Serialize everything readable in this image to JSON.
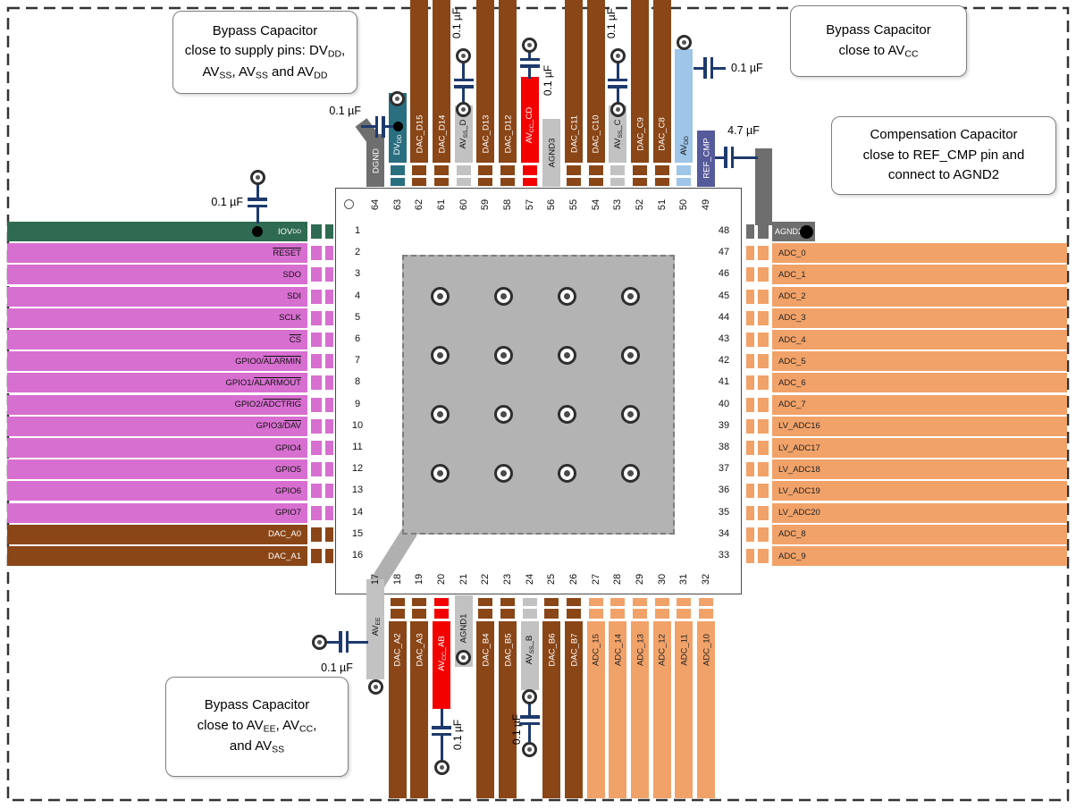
{
  "palette": {
    "magenta": "#d76fd0",
    "green": "#2f6b52",
    "brown": "#8a4617",
    "orange": "#f1a269",
    "teal": "#2a6f80",
    "red": "#f30000",
    "lightblue": "#9fc5e8",
    "indigo": "#555a9b",
    "grayDark": "#6e6e6e",
    "grayLight": "#c2c2c2",
    "navy": "#1e3a6d",
    "thermalPad": "#b3b3b3",
    "boardEdge": "#333333"
  },
  "capacitors": {
    "iovdd": "0.1 µF",
    "dgnd": "0.1 µF",
    "avss_d": "0.1 µF",
    "avcc_cd": "0.1 µF",
    "avss_c": "0.1 µF",
    "avdd": "0.1 µF",
    "ref_cmp": "4.7 µF",
    "avee": "0.1 µF",
    "avcc_ab": "0.1 µF",
    "avss_b": "0.1 µF"
  },
  "notes": [
    {
      "id": "note-bypass-supply",
      "lines": [
        [
          {
            "t": "Bypass Capacitor"
          }
        ],
        [
          {
            "t": "close to supply pins:  DV"
          },
          {
            "t": "DD",
            "sub": true
          },
          {
            "t": ","
          }
        ],
        [
          {
            "t": "AV"
          },
          {
            "t": "SS",
            "sub": true
          },
          {
            "t": ", AV"
          },
          {
            "t": "SS",
            "sub": true
          },
          {
            "t": " and AV"
          },
          {
            "t": "DD",
            "sub": true
          }
        ]
      ]
    },
    {
      "id": "note-bypass-avcc",
      "lines": [
        [
          {
            "t": "Bypass Capacitor"
          }
        ],
        [
          {
            "t": "close to AV"
          },
          {
            "t": "CC",
            "sub": true
          }
        ]
      ]
    },
    {
      "id": "note-compensation",
      "lines": [
        [
          {
            "t": "Compensation Capacitor"
          }
        ],
        [
          {
            "t": "close to REF_CMP pin and"
          }
        ],
        [
          {
            "t": "connect to AGND2"
          }
        ]
      ]
    },
    {
      "id": "note-bypass-avee",
      "lines": [
        [
          {
            "t": "Bypass Capacitor"
          }
        ],
        [
          {
            "t": "close to AV"
          },
          {
            "t": "EE",
            "sub": true
          },
          {
            "t": ", AV"
          },
          {
            "t": "CC",
            "sub": true
          },
          {
            "t": ","
          }
        ],
        [
          {
            "t": "and AV"
          },
          {
            "t": "SS",
            "sub": true
          }
        ]
      ]
    }
  ],
  "pins": {
    "left": [
      {
        "num": "1",
        "id": "iovdd",
        "c": "green",
        "t": "#ffffff",
        "label": [
          {
            "t": "IOV"
          },
          {
            "t": "DD",
            "sub": true
          }
        ]
      },
      {
        "num": "2",
        "id": "reset",
        "c": "magenta",
        "t": "#111111",
        "label": [
          {
            "t": "RESET",
            "over": true
          }
        ]
      },
      {
        "num": "3",
        "id": "sdo",
        "c": "magenta",
        "t": "#111111",
        "label": [
          {
            "t": "SDO"
          }
        ]
      },
      {
        "num": "4",
        "id": "sdi",
        "c": "magenta",
        "t": "#111111",
        "label": [
          {
            "t": "SDI"
          }
        ]
      },
      {
        "num": "5",
        "id": "sclk",
        "c": "magenta",
        "t": "#111111",
        "label": [
          {
            "t": "SCLK"
          }
        ]
      },
      {
        "num": "6",
        "id": "cs",
        "c": "magenta",
        "t": "#111111",
        "label": [
          {
            "t": "CS",
            "over": true
          }
        ]
      },
      {
        "num": "7",
        "id": "gpio0",
        "c": "magenta",
        "t": "#111111",
        "label": [
          {
            "t": "GPIO0/"
          },
          {
            "t": "ALARMIN",
            "over": true
          }
        ]
      },
      {
        "num": "8",
        "id": "gpio1",
        "c": "magenta",
        "t": "#111111",
        "label": [
          {
            "t": "GPIO1/"
          },
          {
            "t": "ALARMOUT",
            "over": true
          }
        ]
      },
      {
        "num": "9",
        "id": "gpio2",
        "c": "magenta",
        "t": "#111111",
        "label": [
          {
            "t": "GPIO2/"
          },
          {
            "t": "ADCTRIG",
            "over": true
          }
        ]
      },
      {
        "num": "10",
        "id": "gpio3",
        "c": "magenta",
        "t": "#111111",
        "label": [
          {
            "t": "GPIO3/"
          },
          {
            "t": "DAV",
            "over": true
          }
        ]
      },
      {
        "num": "11",
        "id": "gpio4",
        "c": "magenta",
        "t": "#111111",
        "label": [
          {
            "t": "GPIO4"
          }
        ]
      },
      {
        "num": "12",
        "id": "gpio5",
        "c": "magenta",
        "t": "#111111",
        "label": [
          {
            "t": "GPIO5"
          }
        ]
      },
      {
        "num": "13",
        "id": "gpio6",
        "c": "magenta",
        "t": "#111111",
        "label": [
          {
            "t": "GPIO6"
          }
        ]
      },
      {
        "num": "14",
        "id": "gpio7",
        "c": "magenta",
        "t": "#111111",
        "label": [
          {
            "t": "GPIO7"
          }
        ]
      },
      {
        "num": "15",
        "id": "dac_a0",
        "c": "brown",
        "t": "#ffffff",
        "label": [
          {
            "t": "DAC_A0"
          }
        ]
      },
      {
        "num": "16",
        "id": "dac_a1",
        "c": "brown",
        "t": "#ffffff",
        "label": [
          {
            "t": "DAC_A1"
          }
        ]
      }
    ],
    "right": [
      {
        "num": "48",
        "id": "agnd2",
        "c": "grayDark",
        "t": "#ffffff",
        "label": [
          {
            "t": "AGND2"
          }
        ],
        "short": true
      },
      {
        "num": "47",
        "id": "adc_0",
        "c": "orange",
        "t": "#222222",
        "label": [
          {
            "t": "ADC_0"
          }
        ]
      },
      {
        "num": "46",
        "id": "adc_1",
        "c": "orange",
        "t": "#222222",
        "label": [
          {
            "t": "ADC_1"
          }
        ]
      },
      {
        "num": "45",
        "id": "adc_2",
        "c": "orange",
        "t": "#222222",
        "label": [
          {
            "t": "ADC_2"
          }
        ]
      },
      {
        "num": "44",
        "id": "adc_3",
        "c": "orange",
        "t": "#222222",
        "label": [
          {
            "t": "ADC_3"
          }
        ]
      },
      {
        "num": "43",
        "id": "adc_4",
        "c": "orange",
        "t": "#222222",
        "label": [
          {
            "t": "ADC_4"
          }
        ]
      },
      {
        "num": "42",
        "id": "adc_5",
        "c": "orange",
        "t": "#222222",
        "label": [
          {
            "t": "ADC_5"
          }
        ]
      },
      {
        "num": "41",
        "id": "adc_6",
        "c": "orange",
        "t": "#222222",
        "label": [
          {
            "t": "ADC_6"
          }
        ]
      },
      {
        "num": "40",
        "id": "adc_7",
        "c": "orange",
        "t": "#222222",
        "label": [
          {
            "t": "ADC_7"
          }
        ]
      },
      {
        "num": "39",
        "id": "lv_adc16",
        "c": "orange",
        "t": "#222222",
        "label": [
          {
            "t": "LV_ADC16"
          }
        ]
      },
      {
        "num": "38",
        "id": "lv_adc17",
        "c": "orange",
        "t": "#222222",
        "label": [
          {
            "t": "LV_ADC17"
          }
        ]
      },
      {
        "num": "37",
        "id": "lv_adc18",
        "c": "orange",
        "t": "#222222",
        "label": [
          {
            "t": "LV_ADC18"
          }
        ]
      },
      {
        "num": "36",
        "id": "lv_adc19",
        "c": "orange",
        "t": "#222222",
        "label": [
          {
            "t": "LV_ADC19"
          }
        ]
      },
      {
        "num": "35",
        "id": "lv_adc20",
        "c": "orange",
        "t": "#222222",
        "label": [
          {
            "t": "LV_ADC20"
          }
        ]
      },
      {
        "num": "34",
        "id": "adc_8",
        "c": "orange",
        "t": "#222222",
        "label": [
          {
            "t": "ADC_8"
          }
        ]
      },
      {
        "num": "33",
        "id": "adc_9",
        "c": "orange",
        "t": "#222222",
        "label": [
          {
            "t": "ADC_9"
          }
        ]
      }
    ],
    "top": [
      {
        "num": "64",
        "id": "dgnd",
        "c": "grayDark",
        "t": "#ffffff",
        "label": [
          {
            "t": "DGND"
          }
        ]
      },
      {
        "num": "63",
        "id": "dvdd",
        "c": "teal",
        "t": "#ffffff",
        "label": [
          {
            "t": "DV"
          },
          {
            "t": "DD",
            "sub": true
          }
        ]
      },
      {
        "num": "62",
        "id": "dac_d15",
        "c": "brown",
        "t": "#ffffff",
        "label": [
          {
            "t": "DAC_D15"
          }
        ]
      },
      {
        "num": "61",
        "id": "dac_d14",
        "c": "brown",
        "t": "#ffffff",
        "label": [
          {
            "t": "DAC_D14"
          }
        ]
      },
      {
        "num": "60",
        "id": "avss_d",
        "c": "grayLight",
        "t": "#111111",
        "label": [
          {
            "t": "AV"
          },
          {
            "t": "SS",
            "sub": true
          },
          {
            "t": "_D"
          }
        ]
      },
      {
        "num": "59",
        "id": "dac_d13",
        "c": "brown",
        "t": "#ffffff",
        "label": [
          {
            "t": "DAC_D13"
          }
        ]
      },
      {
        "num": "58",
        "id": "dac_d12",
        "c": "brown",
        "t": "#ffffff",
        "label": [
          {
            "t": "DAC_D12"
          }
        ]
      },
      {
        "num": "57",
        "id": "avcc_cd",
        "c": "red",
        "t": "#ffffff",
        "label": [
          {
            "t": "AV"
          },
          {
            "t": "CC",
            "sub": true
          },
          {
            "t": "_CD"
          }
        ]
      },
      {
        "num": "56",
        "id": "agnd3",
        "c": "grayLight",
        "t": "#111111",
        "label": [
          {
            "t": "AGND3"
          }
        ]
      },
      {
        "num": "55",
        "id": "dac_c11",
        "c": "brown",
        "t": "#ffffff",
        "label": [
          {
            "t": "DAC_C11"
          }
        ]
      },
      {
        "num": "54",
        "id": "dac_c10",
        "c": "brown",
        "t": "#ffffff",
        "label": [
          {
            "t": "DAC_C10"
          }
        ]
      },
      {
        "num": "53",
        "id": "avss_c",
        "c": "grayLight",
        "t": "#111111",
        "label": [
          {
            "t": "AV"
          },
          {
            "t": "SS",
            "sub": true
          },
          {
            "t": "_C"
          }
        ]
      },
      {
        "num": "52",
        "id": "dac_c9",
        "c": "brown",
        "t": "#ffffff",
        "label": [
          {
            "t": "DAC_C9"
          }
        ]
      },
      {
        "num": "51",
        "id": "dac_c8",
        "c": "brown",
        "t": "#ffffff",
        "label": [
          {
            "t": "DAC_C8"
          }
        ]
      },
      {
        "num": "50",
        "id": "avdd",
        "c": "lightblue",
        "t": "#111111",
        "label": [
          {
            "t": "AV"
          },
          {
            "t": "DD",
            "sub": true
          }
        ]
      },
      {
        "num": "49",
        "id": "ref_cmp",
        "c": "indigo",
        "t": "#ffffff",
        "label": [
          {
            "t": "REF_CMP"
          }
        ]
      }
    ],
    "bottom": [
      {
        "num": "17",
        "id": "avee",
        "c": "grayLight",
        "t": "#111111",
        "label": [
          {
            "t": "AV"
          },
          {
            "t": "EE",
            "sub": true
          }
        ]
      },
      {
        "num": "18",
        "id": "dac_a2",
        "c": "brown",
        "t": "#ffffff",
        "label": [
          {
            "t": "DAC_A2"
          }
        ]
      },
      {
        "num": "19",
        "id": "dac_a3",
        "c": "brown",
        "t": "#ffffff",
        "label": [
          {
            "t": "DAC_A3"
          }
        ]
      },
      {
        "num": "20",
        "id": "avcc_ab",
        "c": "red",
        "t": "#ffffff",
        "label": [
          {
            "t": "AV"
          },
          {
            "t": "CC",
            "sub": true
          },
          {
            "t": "_AB"
          }
        ]
      },
      {
        "num": "21",
        "id": "agnd1",
        "c": "grayLight",
        "t": "#111111",
        "label": [
          {
            "t": "AGND1"
          }
        ]
      },
      {
        "num": "22",
        "id": "dac_b4",
        "c": "brown",
        "t": "#ffffff",
        "label": [
          {
            "t": "DAC_B4"
          }
        ]
      },
      {
        "num": "23",
        "id": "dac_b5",
        "c": "brown",
        "t": "#ffffff",
        "label": [
          {
            "t": "DAC_B5"
          }
        ]
      },
      {
        "num": "24",
        "id": "avss_b",
        "c": "grayLight",
        "t": "#111111",
        "label": [
          {
            "t": "AV"
          },
          {
            "t": "SS",
            "sub": true
          },
          {
            "t": "_B"
          }
        ]
      },
      {
        "num": "25",
        "id": "dac_b6",
        "c": "brown",
        "t": "#ffffff",
        "label": [
          {
            "t": "DAC_B6"
          }
        ]
      },
      {
        "num": "26",
        "id": "dac_b7",
        "c": "brown",
        "t": "#ffffff",
        "label": [
          {
            "t": "DAC_B7"
          }
        ]
      },
      {
        "num": "27",
        "id": "adc_15",
        "c": "orange",
        "t": "#222222",
        "label": [
          {
            "t": "ADC_15"
          }
        ]
      },
      {
        "num": "28",
        "id": "adc_14",
        "c": "orange",
        "t": "#222222",
        "label": [
          {
            "t": "ADC_14"
          }
        ]
      },
      {
        "num": "29",
        "id": "adc_13",
        "c": "orange",
        "t": "#222222",
        "label": [
          {
            "t": "ADC_13"
          }
        ]
      },
      {
        "num": "30",
        "id": "adc_12",
        "c": "orange",
        "t": "#222222",
        "label": [
          {
            "t": "ADC_12"
          }
        ]
      },
      {
        "num": "31",
        "id": "adc_11",
        "c": "orange",
        "t": "#222222",
        "label": [
          {
            "t": "ADC_11"
          }
        ]
      },
      {
        "num": "32",
        "id": "adc_10",
        "c": "orange",
        "t": "#222222",
        "label": [
          {
            "t": "ADC_10"
          }
        ]
      }
    ]
  }
}
